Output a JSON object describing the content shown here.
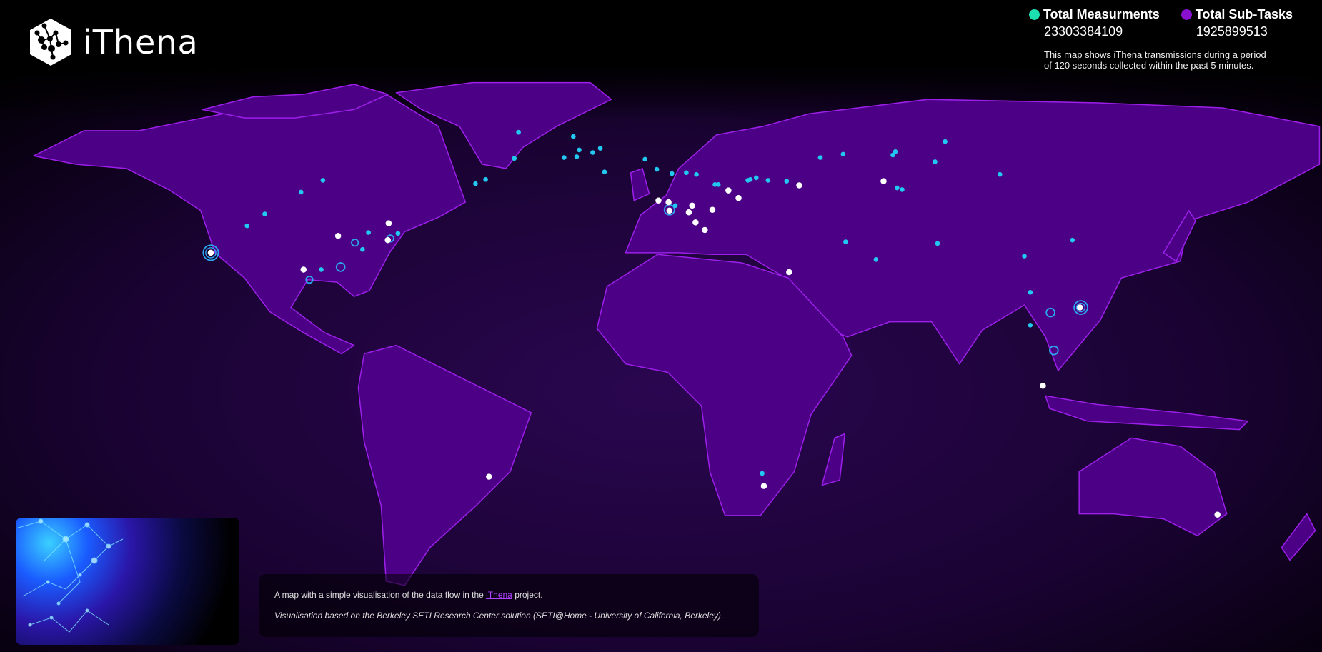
{
  "brand": {
    "name": "iThena"
  },
  "stats": [
    {
      "label": "Total Measurments",
      "value": "23303384109",
      "color": "#1de0b0"
    },
    {
      "label": "Total Sub-Tasks",
      "value": "1925899513",
      "color": "#8a10d0"
    }
  ],
  "description": "This map shows iThena transmissions during a period of 120 seconds collected within the past 5 minutes.",
  "caption": {
    "line1_before": "A map with a simple visualisation of the data flow in the ",
    "line1_link": "iThena",
    "line1_after": " project.",
    "line2": "Visualisation based on the Berkeley SETI Research Center solution (SETI@Home - University of California, Berkeley)."
  },
  "colors": {
    "land": "#4b0085",
    "border": "#9b1fe8",
    "measurement_dot": "#22c8f0",
    "subtask_dot": "#ffffff",
    "ring": "#2aa8f0"
  }
}
